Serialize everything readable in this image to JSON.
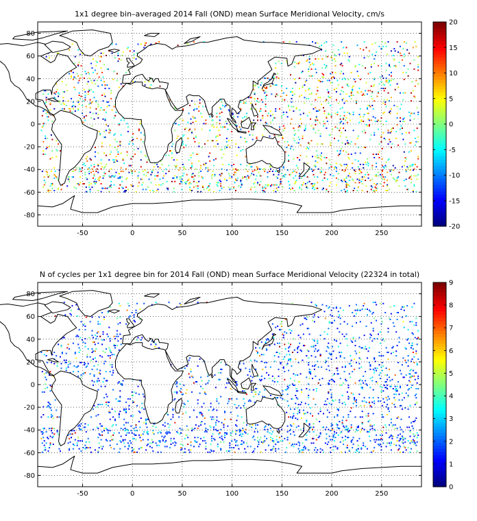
{
  "panels": [
    {
      "title": "1x1 degree bin–averaged 2014 Fall (OND) mean Surface Meridional Velocity, cm/s",
      "colorbar_ticks": [
        "20",
        "15",
        "10",
        "5",
        "0",
        "-5",
        "-10",
        "-15",
        "-20"
      ],
      "x_ticks": [
        "-50",
        "0",
        "50",
        "100",
        "150",
        "200",
        "250"
      ],
      "y_ticks": [
        "80",
        "60",
        "40",
        "20",
        "0",
        "-20",
        "-40",
        "-60",
        "-80"
      ]
    },
    {
      "title": "N of cycles per 1x1 degree bin for 2014 Fall (OND) mean Surface Meridional Velocity (22324 in total)",
      "colorbar_ticks": [
        "9",
        "8",
        "7",
        "6",
        "5",
        "4",
        "3",
        "2",
        "1",
        "0"
      ],
      "x_ticks": [
        "-50",
        "0",
        "50",
        "100",
        "150",
        "200",
        "250"
      ],
      "y_ticks": [
        "80",
        "60",
        "40",
        "20",
        "0",
        "-20",
        "-40",
        "-60",
        "-80"
      ]
    }
  ],
  "map_extent": {
    "lon_min": -95,
    "lon_max": 290,
    "lat_min": -90,
    "lat_max": 90
  },
  "colormap": "jet",
  "colorbar_ranges": [
    [
      -20,
      20
    ],
    [
      0,
      9
    ]
  ],
  "grid": "dotted"
}
